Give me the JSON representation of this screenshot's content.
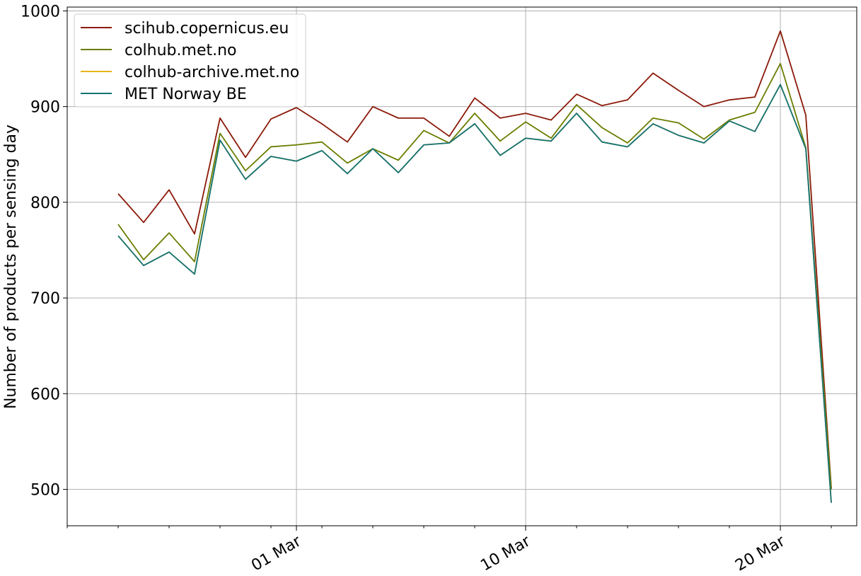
{
  "chart_data": {
    "type": "line",
    "title": "",
    "xlabel": "",
    "ylabel": "Number of products per sensing day",
    "ylim": [
      462,
      1004
    ],
    "xlim": [
      "2022-02-20",
      "2022-03-23"
    ],
    "grid": true,
    "legend_position": "top-left",
    "x_tick_labels": [
      {
        "date": "2022-03-01",
        "label": "01 Mar"
      },
      {
        "date": "2022-03-10",
        "label": "10 Mar"
      },
      {
        "date": "2022-03-20",
        "label": "20 Mar"
      }
    ],
    "y_ticks": [
      500,
      600,
      700,
      800,
      900,
      1000
    ],
    "x": [
      "2022-02-22",
      "2022-02-23",
      "2022-02-24",
      "2022-02-25",
      "2022-02-26",
      "2022-02-27",
      "2022-02-28",
      "2022-03-01",
      "2022-03-02",
      "2022-03-03",
      "2022-03-04",
      "2022-03-05",
      "2022-03-06",
      "2022-03-07",
      "2022-03-08",
      "2022-03-09",
      "2022-03-10",
      "2022-03-11",
      "2022-03-12",
      "2022-03-13",
      "2022-03-14",
      "2022-03-15",
      "2022-03-16",
      "2022-03-17",
      "2022-03-18",
      "2022-03-19",
      "2022-03-20",
      "2022-03-21",
      "2022-03-22"
    ],
    "series": [
      {
        "name": "scihub.copernicus.eu",
        "color": "#8b1a0a",
        "values": [
          809,
          779,
          813,
          767,
          888,
          847,
          887,
          899,
          882,
          863,
          900,
          888,
          888,
          869,
          909,
          888,
          893,
          886,
          913,
          901,
          907,
          935,
          917,
          900,
          907,
          910,
          979,
          891,
          501
        ]
      },
      {
        "name": "colhub.met.no",
        "color": "#6b7d00",
        "values": [
          777,
          740,
          768,
          738,
          872,
          833,
          858,
          860,
          863,
          841,
          856,
          844,
          875,
          862,
          893,
          864,
          884,
          867,
          902,
          878,
          862,
          888,
          883,
          866,
          886,
          894,
          945,
          857,
          500
        ]
      },
      {
        "name": "colhub-archive.met.no",
        "color": "#e8b41c",
        "values": [
          765,
          734,
          748,
          725,
          865,
          824,
          848,
          843,
          854,
          830,
          856,
          831,
          860,
          862,
          882,
          849,
          867,
          864,
          893,
          863,
          858,
          882,
          870,
          862,
          885,
          874,
          923,
          856,
          486
        ]
      },
      {
        "name": "MET Norway BE",
        "color": "#137276",
        "values": [
          765,
          734,
          748,
          725,
          865,
          824,
          848,
          843,
          854,
          830,
          856,
          831,
          860,
          862,
          882,
          849,
          867,
          864,
          893,
          863,
          858,
          882,
          870,
          862,
          885,
          874,
          923,
          856,
          486
        ]
      }
    ]
  }
}
